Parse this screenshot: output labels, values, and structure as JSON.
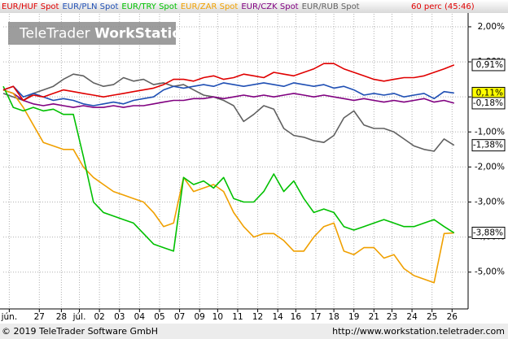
{
  "chart_data": {
    "type": "line",
    "period": "60 perc (45:46)",
    "watermark": [
      "TeleTrader",
      "WorkStation"
    ],
    "footer_left": "© 2019 TeleTrader Software GmbH",
    "footer_right": "http://www.workstation.teletrader.com",
    "x": [
      0,
      0.5,
      1,
      1.5,
      2,
      2.5,
      3,
      3.5,
      4,
      4.5,
      5,
      5.5,
      6,
      6.5,
      7,
      7.5,
      8,
      8.5,
      9,
      9.5,
      10,
      10.5,
      11,
      11.5,
      12,
      12.5,
      13,
      13.5,
      14,
      14.5,
      15,
      15.5,
      16,
      16.5,
      17,
      17.5,
      18,
      18.5,
      19,
      19.5,
      20,
      20.5,
      21,
      21.5,
      22,
      22.5
    ],
    "xlim": [
      0,
      23.2
    ],
    "xticks": [
      {
        "value": 0.3,
        "label": "jún."
      },
      {
        "value": 1.8,
        "label": "27"
      },
      {
        "value": 2.9,
        "label": "28"
      },
      {
        "value": 3.8,
        "label": "júl."
      },
      {
        "value": 4.8,
        "label": "02"
      },
      {
        "value": 5.8,
        "label": "03"
      },
      {
        "value": 6.8,
        "label": "04"
      },
      {
        "value": 7.8,
        "label": "05"
      },
      {
        "value": 8.8,
        "label": "07"
      },
      {
        "value": 9.8,
        "label": "09"
      },
      {
        "value": 10.7,
        "label": "10"
      },
      {
        "value": 11.7,
        "label": "11"
      },
      {
        "value": 12.7,
        "label": "12"
      },
      {
        "value": 13.7,
        "label": "14"
      },
      {
        "value": 14.6,
        "label": "16"
      },
      {
        "value": 15.6,
        "label": "17"
      },
      {
        "value": 16.5,
        "label": "18"
      },
      {
        "value": 17.5,
        "label": "19"
      },
      {
        "value": 18.5,
        "label": "21"
      },
      {
        "value": 19.4,
        "label": "23"
      },
      {
        "value": 20.4,
        "label": "24"
      },
      {
        "value": 21.4,
        "label": "25"
      },
      {
        "value": 22.4,
        "label": "26"
      }
    ],
    "ylim": [
      -6.05,
      2.37
    ],
    "yticks": [
      {
        "value": 2,
        "label": "2,00%"
      },
      {
        "value": 1,
        "label": "1,00%"
      },
      {
        "value": 0,
        "label": "0,00%"
      },
      {
        "value": -1,
        "label": "-1,00%"
      },
      {
        "value": -2,
        "label": "-2,00%"
      },
      {
        "value": -3,
        "label": "-3,00%"
      },
      {
        "value": -4,
        "label": "-4,00%"
      },
      {
        "value": -5,
        "label": "-5,00%"
      }
    ],
    "grid": true,
    "series": [
      {
        "name": "EUR/HUF Spot",
        "color": "#e00000",
        "values": [
          0.2,
          0.3,
          -0.1,
          0.05,
          0.0,
          0.1,
          0.2,
          0.15,
          0.1,
          0.05,
          0.0,
          0.05,
          0.1,
          0.15,
          0.2,
          0.25,
          0.35,
          0.5,
          0.5,
          0.45,
          0.55,
          0.6,
          0.5,
          0.55,
          0.65,
          0.6,
          0.55,
          0.7,
          0.65,
          0.6,
          0.7,
          0.8,
          0.95,
          0.95,
          0.8,
          0.7,
          0.6,
          0.5,
          0.45,
          0.5,
          0.55,
          0.55,
          0.6,
          0.7,
          0.8,
          0.91
        ]
      },
      {
        "name": "EUR/PLN Spot",
        "color": "#1f4fb4",
        "values": [
          0.2,
          0.3,
          0.0,
          0.1,
          0.0,
          -0.1,
          -0.05,
          -0.1,
          -0.2,
          -0.25,
          -0.2,
          -0.15,
          -0.2,
          -0.1,
          -0.05,
          0.0,
          0.2,
          0.3,
          0.25,
          0.3,
          0.35,
          0.3,
          0.4,
          0.35,
          0.3,
          0.35,
          0.4,
          0.35,
          0.3,
          0.4,
          0.35,
          0.3,
          0.35,
          0.25,
          0.3,
          0.2,
          0.05,
          0.1,
          0.05,
          0.1,
          0.0,
          0.05,
          0.1,
          -0.05,
          0.15,
          0.11
        ]
      },
      {
        "name": "EUR/TRY Spot",
        "color": "#00c000",
        "values": [
          0.3,
          -0.3,
          -0.4,
          -0.3,
          -0.4,
          -0.35,
          -0.5,
          -0.5,
          -1.7,
          -3.0,
          -3.3,
          -3.4,
          -3.5,
          -3.6,
          -3.9,
          -4.2,
          -4.3,
          -4.4,
          -2.3,
          -2.5,
          -2.4,
          -2.6,
          -2.3,
          -2.9,
          -3.0,
          -3.0,
          -2.7,
          -2.2,
          -2.7,
          -2.4,
          -2.9,
          -3.3,
          -3.2,
          -3.3,
          -3.7,
          -3.8,
          -3.7,
          -3.6,
          -3.5,
          -3.6,
          -3.7,
          -3.7,
          -3.6,
          -3.5,
          -3.7,
          -3.88
        ]
      },
      {
        "name": "EUR/ZAR Spot",
        "color": "#f0a000",
        "values": [
          0.2,
          0.1,
          -0.3,
          -0.8,
          -1.3,
          -1.4,
          -1.5,
          -1.5,
          -2.0,
          -2.3,
          -2.5,
          -2.7,
          -2.8,
          -2.9,
          -3.0,
          -3.3,
          -3.7,
          -3.6,
          -2.3,
          -2.7,
          -2.6,
          -2.5,
          -2.7,
          -3.3,
          -3.7,
          -4.0,
          -3.9,
          -3.9,
          -4.1,
          -4.4,
          -4.4,
          -4.0,
          -3.7,
          -3.6,
          -4.4,
          -4.5,
          -4.3,
          -4.3,
          -4.6,
          -4.5,
          -4.9,
          -5.1,
          -5.2,
          -5.3,
          -3.9,
          -3.88
        ]
      },
      {
        "name": "EUR/CZK Spot",
        "color": "#800080",
        "values": [
          0.2,
          0.1,
          -0.1,
          -0.2,
          -0.25,
          -0.2,
          -0.25,
          -0.3,
          -0.25,
          -0.3,
          -0.3,
          -0.25,
          -0.3,
          -0.25,
          -0.25,
          -0.2,
          -0.15,
          -0.1,
          -0.1,
          -0.05,
          -0.05,
          0.0,
          -0.05,
          0.0,
          0.05,
          0.0,
          0.05,
          0.0,
          0.05,
          0.1,
          0.05,
          0.0,
          0.05,
          0.0,
          -0.05,
          -0.1,
          -0.05,
          -0.1,
          -0.15,
          -0.1,
          -0.15,
          -0.1,
          -0.05,
          -0.15,
          -0.1,
          -0.18
        ]
      },
      {
        "name": "EUR/RUB Spot",
        "color": "#606060",
        "values": [
          0.1,
          0.0,
          -0.1,
          0.1,
          0.2,
          0.3,
          0.5,
          0.65,
          0.6,
          0.4,
          0.3,
          0.35,
          0.55,
          0.45,
          0.5,
          0.35,
          0.4,
          0.3,
          0.35,
          0.2,
          0.05,
          0.0,
          -0.1,
          -0.25,
          -0.7,
          -0.5,
          -0.25,
          -0.35,
          -0.9,
          -1.1,
          -1.15,
          -1.25,
          -1.3,
          -1.1,
          -0.6,
          -0.4,
          -0.8,
          -0.9,
          -0.9,
          -1.0,
          -1.2,
          -1.4,
          -1.5,
          -1.55,
          -1.2,
          -1.38
        ]
      }
    ],
    "badges": [
      {
        "value": 0.91,
        "label": "0,91%",
        "color": "#ffffff"
      },
      {
        "value": 0.11,
        "label": "0,11%",
        "color": "#ffff00"
      },
      {
        "value": -0.18,
        "label": "-0,18%",
        "color": "#ffffff"
      },
      {
        "value": -1.38,
        "label": "-1,38%",
        "color": "#ffffff"
      },
      {
        "value": -3.88,
        "label": "-3,88%",
        "color": "#ffffff"
      }
    ]
  }
}
